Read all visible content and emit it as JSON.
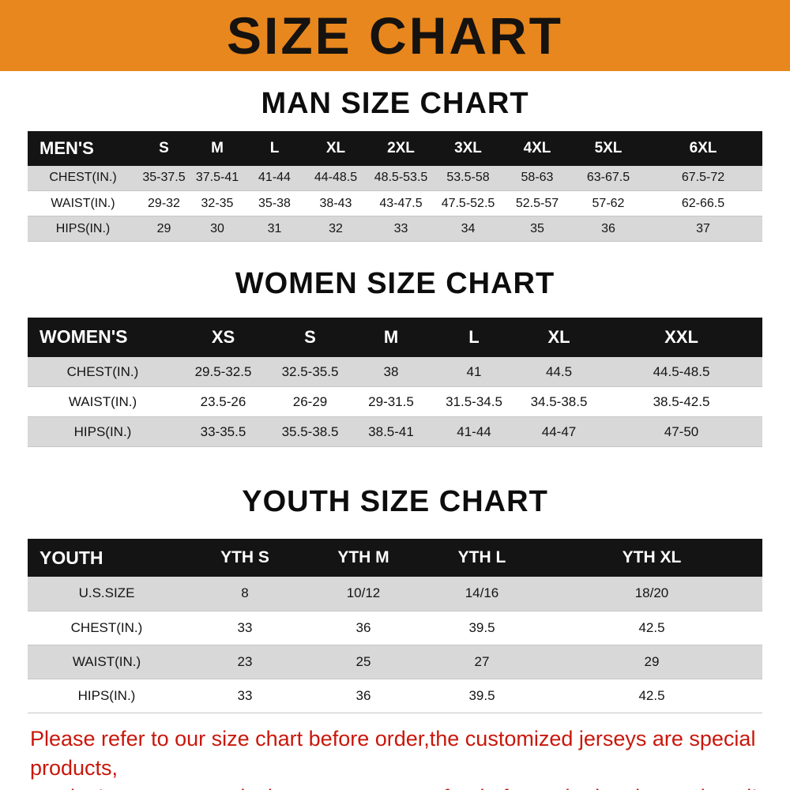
{
  "banner": {
    "title": "SIZE CHART"
  },
  "colors": {
    "banner_bg": "#E8871D",
    "table_header_bg": "#141414",
    "row_alt_bg": "#D8D8D8",
    "footer_text": "#C9170B"
  },
  "sections": [
    {
      "heading": "MAN SIZE CHART",
      "table": {
        "header": [
          "MEN'S",
          "S",
          "M",
          "L",
          "XL",
          "2XL",
          "3XL",
          "4XL",
          "5XL",
          "6XL"
        ],
        "rows": [
          [
            "CHEST(IN.)",
            "35-37.5",
            "37.5-41",
            "41-44",
            "44-48.5",
            "48.5-53.5",
            "53.5-58",
            "58-63",
            "63-67.5",
            "67.5-72"
          ],
          [
            "WAIST(IN.)",
            "29-32",
            "32-35",
            "35-38",
            "38-43",
            "43-47.5",
            "47.5-52.5",
            "52.5-57",
            "57-62",
            "62-66.5"
          ],
          [
            "HIPS(IN.)",
            "29",
            "30",
            "31",
            "32",
            "33",
            "34",
            "35",
            "36",
            "37"
          ]
        ]
      }
    },
    {
      "heading": "WOMEN SIZE CHART",
      "table": {
        "header": [
          "WOMEN'S",
          "XS",
          "S",
          "M",
          "L",
          "XL",
          "XXL"
        ],
        "rows": [
          [
            "CHEST(IN.)",
            "29.5-32.5",
            "32.5-35.5",
            "38",
            "41",
            "44.5",
            "44.5-48.5"
          ],
          [
            "WAIST(IN.)",
            "23.5-26",
            "26-29",
            "29-31.5",
            "31.5-34.5",
            "34.5-38.5",
            "38.5-42.5"
          ],
          [
            "HIPS(IN.)",
            "33-35.5",
            "35.5-38.5",
            "38.5-41",
            "41-44",
            "44-47",
            "47-50"
          ]
        ]
      }
    },
    {
      "heading": "YOUTH SIZE CHART",
      "table": {
        "header": [
          "YOUTH",
          "YTH S",
          "YTH M",
          "YTH L",
          "YTH XL"
        ],
        "rows": [
          [
            "U.S.SIZE",
            "8",
            "10/12",
            "14/16",
            "18/20"
          ],
          [
            "CHEST(IN.)",
            "33",
            "36",
            "39.5",
            "42.5"
          ],
          [
            "WAIST(IN.)",
            "23",
            "25",
            "27",
            "29"
          ],
          [
            "HIPS(IN.)",
            "33",
            "36",
            "39.5",
            "42.5"
          ]
        ]
      }
    }
  ],
  "footer": {
    "line1": "Please refer to our size chart before order,the customized jerseys are special products,",
    "line2": "we don't accept cancel, change, teturn or refund after order has been placed!"
  }
}
